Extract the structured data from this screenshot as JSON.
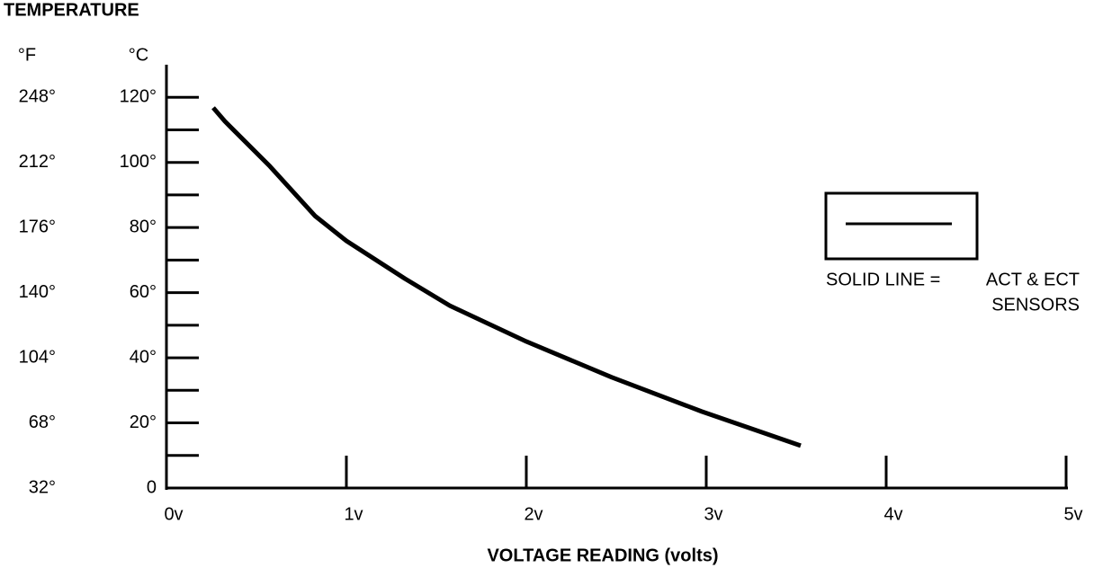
{
  "chart_data": {
    "type": "line",
    "title": "TEMPERATURE",
    "y_unit": "°C",
    "y2_unit": "°F",
    "x_label": "VOLTAGE READING (volts)",
    "x": [
      0.26,
      0.325,
      0.575,
      0.825,
      1.0,
      1.325,
      1.575,
      2.0,
      2.475,
      2.975,
      3.525
    ],
    "series": [
      {
        "color": "#000000",
        "values": [
          116.8,
          112.6,
          98.8,
          83.6,
          75.9,
          64.3,
          56,
          45,
          34,
          23.5,
          13
        ]
      }
    ],
    "xlim": [
      0,
      5
    ],
    "xticks": [
      {
        "value": 0,
        "label": "0v"
      },
      {
        "value": 1,
        "label": "1v"
      },
      {
        "value": 2,
        "label": "2v"
      },
      {
        "value": 3,
        "label": "3v"
      },
      {
        "value": 4,
        "label": "4v"
      },
      {
        "value": 5,
        "label": "5v"
      }
    ],
    "ylim": [
      0,
      130
    ],
    "yticks": [
      0,
      {
        "value": 20,
        "label": "20°"
      },
      {
        "value": 40,
        "label": "40°"
      },
      {
        "value": 60,
        "label": "60°"
      },
      {
        "value": 80,
        "label": "80°"
      },
      {
        "value": 100,
        "label": "100°"
      },
      {
        "value": 120,
        "label": "120°"
      }
    ],
    "yminorticks": [
      10,
      30,
      50,
      70,
      90,
      110
    ],
    "y2lim": [
      32,
      266
    ],
    "y2ticks": [
      {
        "value": 32,
        "label": "32°"
      },
      {
        "value": 68,
        "label": "68°"
      },
      {
        "value": 104,
        "label": "104°"
      },
      {
        "value": 140,
        "label": "140°"
      },
      {
        "value": 176,
        "label": "176°"
      },
      {
        "value": 212,
        "label": "212°"
      },
      {
        "value": 248,
        "label": "248°"
      }
    ],
    "legend": {
      "lines": [
        "SOLID LINE =",
        "ACT & ECT",
        "SENSORS"
      ]
    }
  }
}
